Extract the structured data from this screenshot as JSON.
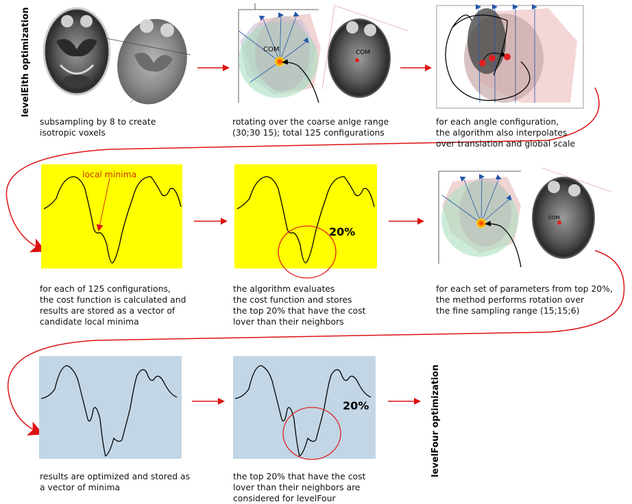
{
  "labels": {
    "level_eith": "levelEith optimization",
    "level_four": "levelFour optimization"
  },
  "captions": {
    "c1": "subsampling by 8 to create\nisotropic voxels",
    "c2": "rotating over the coarse anlge range\n(30;30 15); total 125 configurations",
    "c3": "for each angle configuration,\nthe algorithm also interpolates\nover translation and global scale",
    "c4": "for each of 125 configurations,\nthe cost function is calculated and\nresults are stored as a vector of\ncandidate local minima",
    "c5": "the algorithm evaluates\nthe cost function and stores\nthe top 20% that have the cost\nlover than their neighbors",
    "c6": "for each set of parameters from top 20%,\nthe method performs rotation over\nthe fine sampling range (15;15;6)",
    "c7": "results are optimized and stored as\na vector of minima",
    "c8": "the top 20% that have the cost\nlover than their neighbors are\nconsidered for levelFour"
  },
  "annotations": {
    "com": "COM",
    "com_small": "COM",
    "com_row2": "COM",
    "local_minima": "local minima",
    "pct_row2": "20%",
    "pct_row3": "20%"
  },
  "colors": {
    "yellow_panel": "#ffff00",
    "blue_panel": "#c2d6e6",
    "arrow_red": "#dd1111",
    "circle_red": "#e02020"
  }
}
